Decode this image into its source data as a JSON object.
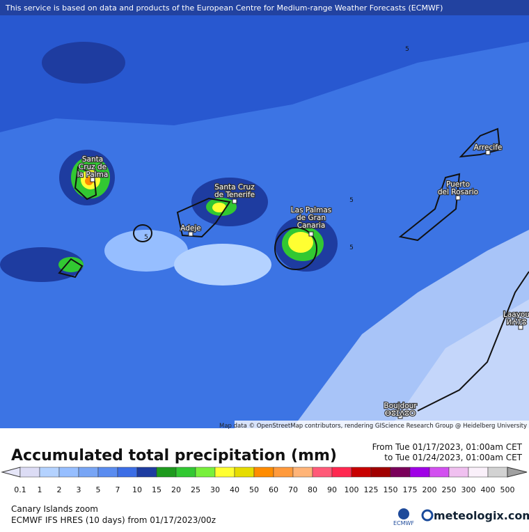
{
  "header": {
    "disclaimer": "This service is based on data and products of the European Centre for Medium-range Weather Forecasts (ECMWF)"
  },
  "map": {
    "places": [
      {
        "lines": [
          "Santa",
          "Cruz de",
          "la Palma"
        ]
      },
      {
        "lines": [
          "Santa Cruz",
          "de Tenerife"
        ]
      },
      {
        "lines": [
          "Adeje"
        ]
      },
      {
        "lines": [
          "Las Palmas",
          "de Gran",
          "Canaria"
        ]
      },
      {
        "lines": [
          "Puerto",
          "del Rosario"
        ]
      },
      {
        "lines": [
          "Arrecife"
        ]
      },
      {
        "lines": [
          "Laayou",
          "ⵍⵄⵢⵓ"
        ]
      },
      {
        "lines": [
          "Boujdour",
          "ⴱⵓⵊⴷⵓⵔ"
        ]
      }
    ],
    "contour_labels": [
      "5",
      "5",
      "5",
      "5"
    ],
    "attribution": "Map data © OpenStreetMap contributors, rendering GIScience Research Group @ Heidelberg University"
  },
  "legend": {
    "title": "Accumulated total precipitation (mm)",
    "period_from": "From Tue 01/17/2023, 01:00am CET",
    "period_to": "to Tue 01/24/2023, 01:00am CET",
    "below_color": "#e6e6f8",
    "above_color": "#a0a0a0",
    "ticks": [
      0.1,
      1,
      2,
      3,
      5,
      7,
      10,
      15,
      20,
      25,
      30,
      40,
      50,
      60,
      70,
      80,
      90,
      100,
      125,
      150,
      175,
      200,
      250,
      300,
      400,
      500
    ],
    "colors": [
      "#dcdcf5",
      "#b4d2ff",
      "#96beff",
      "#78a5f5",
      "#5a8cf0",
      "#3c6ee6",
      "#1e3ca0",
      "#1e9a1e",
      "#32c832",
      "#78f03c",
      "#ffff32",
      "#e6dc00",
      "#ff8c00",
      "#ff9a3c",
      "#ffb478",
      "#ff5a78",
      "#ff2850",
      "#c80000",
      "#a00000",
      "#7a005a",
      "#a000e6",
      "#d250f0",
      "#f0c0f0",
      "#faf0fa",
      "#d2d2d2"
    ]
  },
  "footer": {
    "region": "Canary Islands zoom",
    "model": "ECMWF IFS HRES (10 days) from 01/17/2023/00z",
    "ecmwf": "ECMWF",
    "brand": "meteologix.com"
  }
}
